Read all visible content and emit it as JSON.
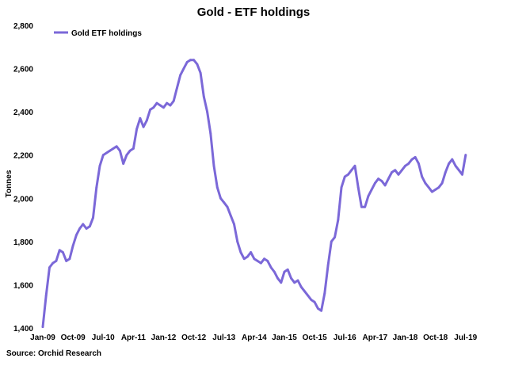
{
  "chart_data": {
    "type": "line",
    "title": "Gold - ETF holdings",
    "xlabel": "",
    "ylabel": "Tonnes",
    "ylim": [
      1400,
      2800
    ],
    "yticks": [
      "1,400",
      "1,600",
      "1,800",
      "2,000",
      "2,200",
      "2,400",
      "2,600",
      "2,800"
    ],
    "yticks_values": [
      1400,
      1600,
      1800,
      2000,
      2200,
      2400,
      2600,
      2800
    ],
    "xlim": [
      "2009-01",
      "2019-08"
    ],
    "xticks": [
      "Jan-09",
      "Oct-09",
      "Jul-10",
      "Apr-11",
      "Jan-12",
      "Oct-12",
      "Jul-13",
      "Apr-14",
      "Jan-15",
      "Oct-15",
      "Jul-16",
      "Apr-17",
      "Jan-18",
      "Oct-18",
      "Jul-19"
    ],
    "legend_position": "top-left",
    "grid": false,
    "line_color": "#7B68D8",
    "series": [
      {
        "name": "Gold ETF holdings",
        "x": [
          "2009-01",
          "2009-02",
          "2009-03",
          "2009-04",
          "2009-05",
          "2009-06",
          "2009-07",
          "2009-08",
          "2009-09",
          "2009-10",
          "2009-11",
          "2009-12",
          "2010-01",
          "2010-02",
          "2010-03",
          "2010-04",
          "2010-05",
          "2010-06",
          "2010-07",
          "2010-08",
          "2010-09",
          "2010-10",
          "2010-11",
          "2010-12",
          "2011-01",
          "2011-02",
          "2011-03",
          "2011-04",
          "2011-05",
          "2011-06",
          "2011-07",
          "2011-08",
          "2011-09",
          "2011-10",
          "2011-11",
          "2011-12",
          "2012-01",
          "2012-02",
          "2012-03",
          "2012-04",
          "2012-05",
          "2012-06",
          "2012-07",
          "2012-08",
          "2012-09",
          "2012-10",
          "2012-11",
          "2012-12",
          "2013-01",
          "2013-02",
          "2013-03",
          "2013-04",
          "2013-05",
          "2013-06",
          "2013-07",
          "2013-08",
          "2013-09",
          "2013-10",
          "2013-11",
          "2013-12",
          "2014-01",
          "2014-02",
          "2014-03",
          "2014-04",
          "2014-05",
          "2014-06",
          "2014-07",
          "2014-08",
          "2014-09",
          "2014-10",
          "2014-11",
          "2014-12",
          "2015-01",
          "2015-02",
          "2015-03",
          "2015-04",
          "2015-05",
          "2015-06",
          "2015-07",
          "2015-08",
          "2015-09",
          "2015-10",
          "2015-11",
          "2015-12",
          "2016-01",
          "2016-02",
          "2016-03",
          "2016-04",
          "2016-05",
          "2016-06",
          "2016-07",
          "2016-08",
          "2016-09",
          "2016-10",
          "2016-11",
          "2016-12",
          "2017-01",
          "2017-02",
          "2017-03",
          "2017-04",
          "2017-05",
          "2017-06",
          "2017-07",
          "2017-08",
          "2017-09",
          "2017-10",
          "2017-11",
          "2017-12",
          "2018-01",
          "2018-02",
          "2018-03",
          "2018-04",
          "2018-05",
          "2018-06",
          "2018-07",
          "2018-08",
          "2018-09",
          "2018-10",
          "2018-11",
          "2018-12",
          "2019-01",
          "2019-02",
          "2019-03",
          "2019-04",
          "2019-05",
          "2019-06",
          "2019-07"
        ],
        "values": [
          1405,
          1550,
          1680,
          1700,
          1710,
          1760,
          1750,
          1710,
          1720,
          1780,
          1830,
          1860,
          1880,
          1860,
          1870,
          1910,
          2050,
          2150,
          2200,
          2210,
          2220,
          2230,
          2240,
          2220,
          2160,
          2200,
          2220,
          2230,
          2320,
          2370,
          2330,
          2360,
          2410,
          2420,
          2440,
          2430,
          2420,
          2440,
          2430,
          2450,
          2510,
          2570,
          2600,
          2630,
          2640,
          2640,
          2620,
          2580,
          2470,
          2400,
          2300,
          2150,
          2050,
          2000,
          1980,
          1960,
          1920,
          1880,
          1800,
          1750,
          1720,
          1730,
          1750,
          1720,
          1710,
          1700,
          1720,
          1710,
          1680,
          1660,
          1630,
          1610,
          1660,
          1670,
          1630,
          1610,
          1620,
          1590,
          1570,
          1550,
          1530,
          1520,
          1490,
          1480,
          1560,
          1690,
          1800,
          1820,
          1900,
          2050,
          2100,
          2110,
          2130,
          2150,
          2050,
          1960,
          1960,
          2010,
          2040,
          2070,
          2090,
          2080,
          2060,
          2090,
          2120,
          2130,
          2110,
          2130,
          2150,
          2160,
          2180,
          2190,
          2160,
          2100,
          2070,
          2050,
          2030,
          2040,
          2050,
          2070,
          2120,
          2160,
          2180,
          2150,
          2130,
          2110,
          2200
        ]
      }
    ]
  },
  "source_text": "Source: Orchid Research"
}
